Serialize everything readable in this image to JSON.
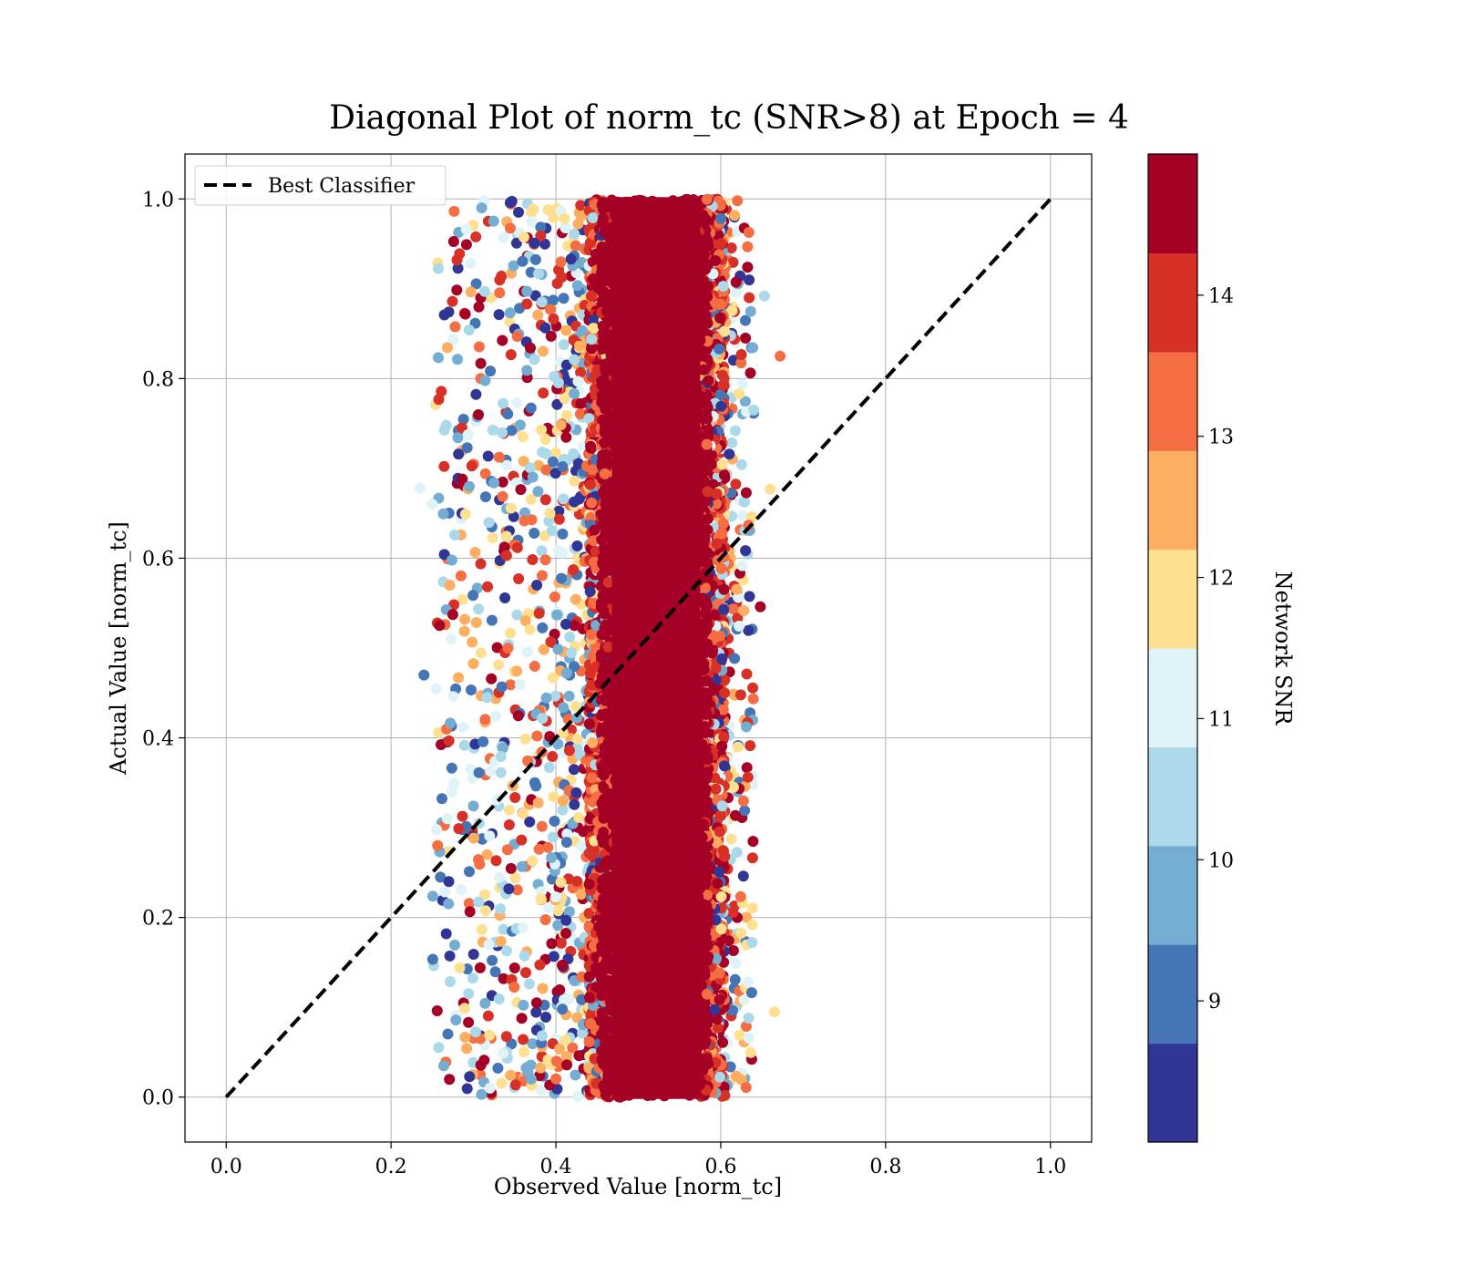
{
  "chart_data": {
    "type": "scatter",
    "title": "Diagonal Plot of norm_tc (SNR>8) at Epoch = 4",
    "xlabel": "Observed Value [norm_tc]",
    "ylabel": "Actual Value [norm_tc]",
    "xlim": [
      -0.05,
      1.05
    ],
    "ylim": [
      -0.05,
      1.05
    ],
    "xticks": [
      "0.0",
      "0.2",
      "0.4",
      "0.6",
      "0.8",
      "1.0"
    ],
    "yticks": [
      "0.0",
      "0.2",
      "0.4",
      "0.6",
      "0.8",
      "1.0"
    ],
    "grid": true,
    "legend": {
      "position": "top-left",
      "entries": [
        "Best Classifier"
      ]
    },
    "reference_line": {
      "name": "Best Classifier",
      "x": [
        0.0,
        1.0
      ],
      "y": [
        0.0,
        1.0
      ],
      "style": "dashed",
      "color": "#000000"
    },
    "colorbar": {
      "label": "Network SNR",
      "range": [
        8.0,
        15.0
      ],
      "ticks": [
        "9",
        "10",
        "11",
        "12",
        "13",
        "14"
      ],
      "colors": [
        "#313695",
        "#4575b4",
        "#74add1",
        "#abd9e9",
        "#e0f3f8",
        "#fee090",
        "#fdae61",
        "#f46d43",
        "#d73027",
        "#a50026"
      ]
    },
    "points": {
      "core_x_range": [
        0.455,
        0.585
      ],
      "scatter_x_range": [
        0.23,
        0.67
      ],
      "y_range": [
        0.0,
        1.0
      ],
      "dominant_color": "#a50026",
      "sample": [
        [
          0.672,
          0.825
        ],
        [
          0.665,
          0.095
        ],
        [
          0.653,
          0.892
        ],
        [
          0.648,
          0.546
        ],
        [
          0.66,
          0.677
        ],
        [
          0.64,
          0.765
        ],
        [
          0.25,
          0.66
        ],
        [
          0.235,
          0.678
        ],
        [
          0.27,
          0.874
        ],
        [
          0.28,
          0.932
        ],
        [
          0.31,
          0.99
        ],
        [
          0.37,
          0.02
        ],
        [
          0.32,
          0.01
        ],
        [
          0.255,
          0.298
        ],
        [
          0.24,
          0.47
        ],
        [
          0.27,
          0.24
        ]
      ]
    }
  }
}
